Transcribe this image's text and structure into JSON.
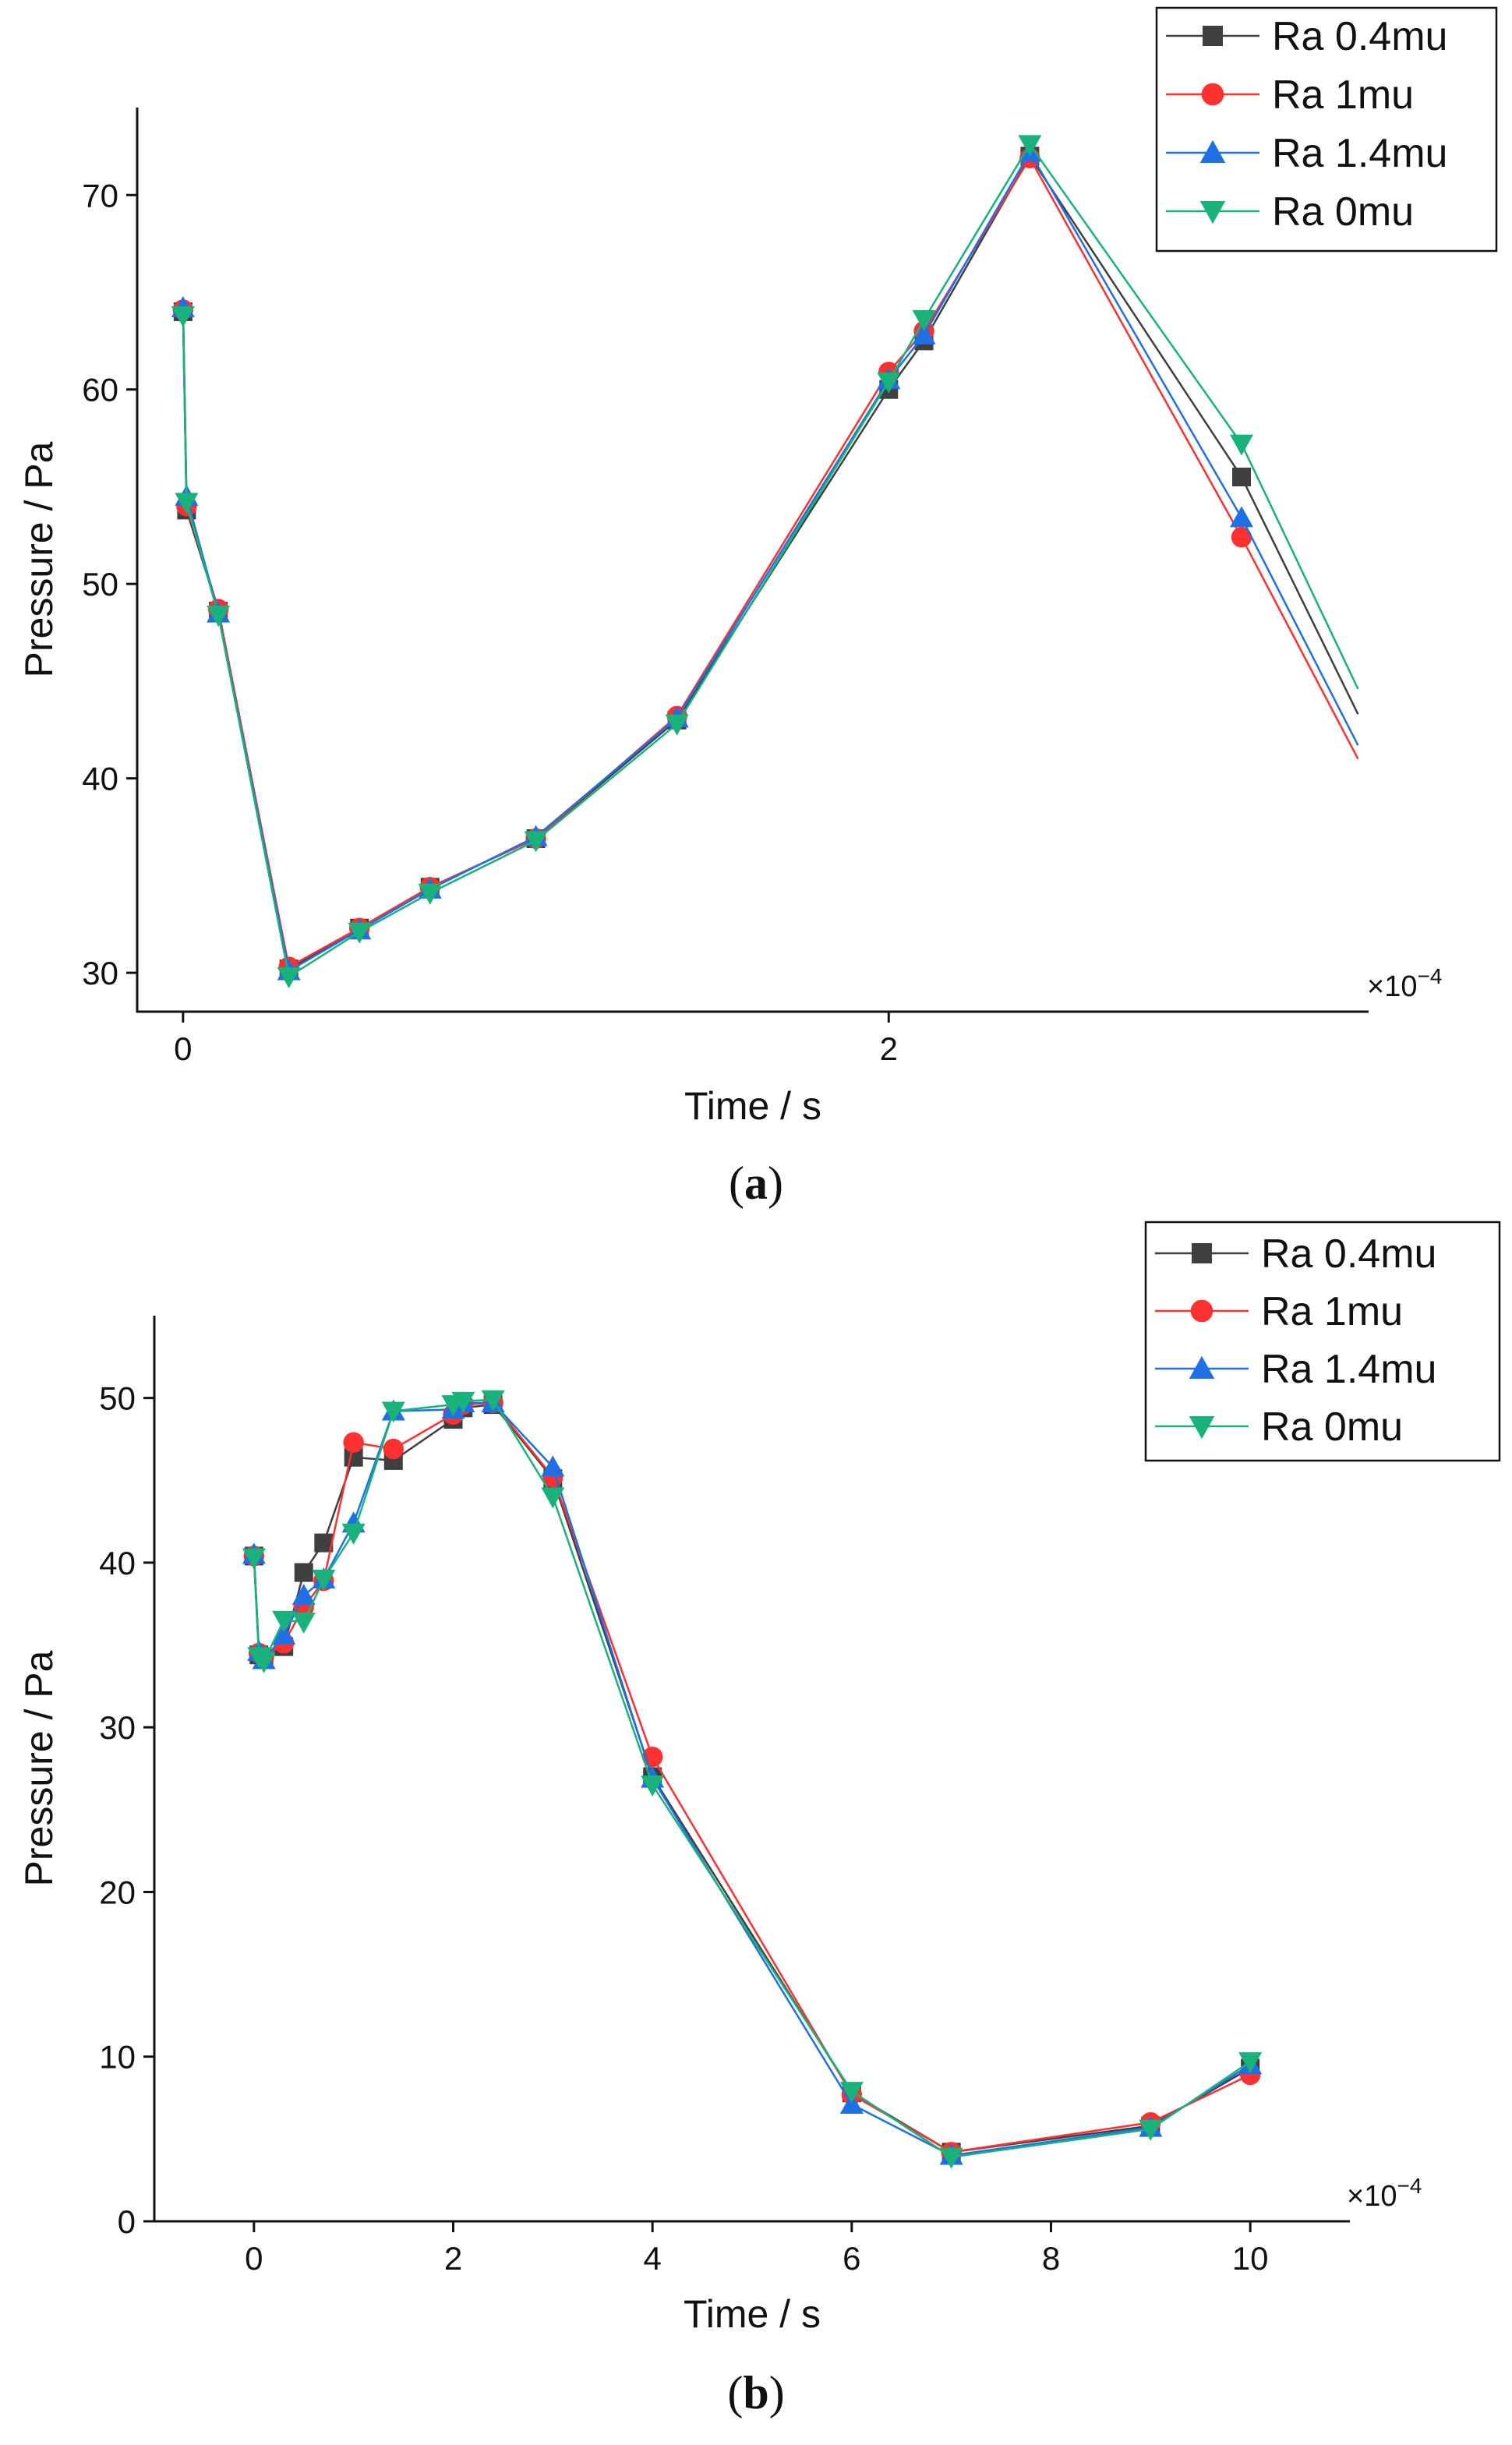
{
  "chart_data": [
    {
      "panel": "a",
      "type": "line",
      "caption_letter": "a",
      "xlabel": "Time / s",
      "ylabel": "Pressure / Pa",
      "x_multiplier": "×10",
      "x_multiplier_exp": "−4",
      "xlim": [
        -0.13,
        3.36
      ],
      "ylim": [
        28,
        74.5
      ],
      "xticks": [
        {
          "v": 0,
          "label": "0"
        },
        {
          "v": 2,
          "label": "2"
        }
      ],
      "yticks": [
        {
          "v": 30,
          "label": "30"
        },
        {
          "v": 40,
          "label": "40"
        },
        {
          "v": 50,
          "label": "50"
        },
        {
          "v": 60,
          "label": "60"
        },
        {
          "v": 70,
          "label": "70"
        }
      ],
      "series": [
        {
          "name": "Ra 0.4mu",
          "color": "#3f3f3f",
          "marker": "square",
          "x": [
            0,
            0.01,
            0.1,
            0.3,
            0.5,
            0.7,
            1.0,
            1.4,
            2.0,
            2.1,
            2.4,
            3.0,
            3.33
          ],
          "y": [
            64.0,
            53.8,
            48.6,
            30.2,
            32.3,
            34.4,
            36.9,
            43.0,
            60.0,
            62.5,
            72.0,
            55.5,
            43.3
          ],
          "markers": [
            true,
            true,
            true,
            true,
            true,
            true,
            true,
            true,
            true,
            true,
            true,
            true,
            false
          ]
        },
        {
          "name": "Ra 1mu",
          "color": "#ff3030",
          "marker": "circle",
          "x": [
            0,
            0.01,
            0.1,
            0.3,
            0.5,
            0.7,
            1.0,
            1.4,
            2.0,
            2.1,
            2.4,
            3.0,
            3.33
          ],
          "y": [
            64.1,
            54.0,
            48.7,
            30.3,
            32.3,
            34.4,
            36.9,
            43.2,
            60.9,
            63.0,
            71.9,
            52.4,
            41.0
          ],
          "markers": [
            true,
            true,
            true,
            true,
            true,
            true,
            true,
            true,
            true,
            true,
            true,
            true,
            false
          ]
        },
        {
          "name": "Ra 1.4mu",
          "color": "#1f6fe5",
          "marker": "triangle-up",
          "x": [
            0,
            0.01,
            0.1,
            0.3,
            0.5,
            0.7,
            1.0,
            1.4,
            2.0,
            2.1,
            2.4,
            3.0,
            3.33
          ],
          "y": [
            64.2,
            54.5,
            48.5,
            30.1,
            32.2,
            34.3,
            37.0,
            43.1,
            60.5,
            62.8,
            72.2,
            53.4,
            41.7
          ],
          "markers": [
            true,
            true,
            true,
            true,
            true,
            true,
            true,
            true,
            true,
            true,
            true,
            true,
            false
          ]
        },
        {
          "name": "Ra 0mu",
          "color": "#19b27a",
          "marker": "triangle-down",
          "x": [
            0,
            0.01,
            0.1,
            0.3,
            0.5,
            0.7,
            1.0,
            1.4,
            2.0,
            2.1,
            2.4,
            3.0,
            3.33
          ],
          "y": [
            63.8,
            54.2,
            48.4,
            29.8,
            32.1,
            34.1,
            36.8,
            42.8,
            60.4,
            63.6,
            72.6,
            57.2,
            44.6
          ],
          "markers": [
            true,
            true,
            true,
            true,
            true,
            true,
            true,
            true,
            true,
            true,
            true,
            true,
            false
          ]
        }
      ]
    },
    {
      "panel": "b",
      "type": "line",
      "caption_letter": "b",
      "xlabel": "Time / s",
      "ylabel": "Pressure / Pa",
      "x_multiplier": "×10",
      "x_multiplier_exp": "−4",
      "xlim": [
        -1.0,
        11.0
      ],
      "ylim": [
        0,
        55
      ],
      "xticks": [
        {
          "v": 0,
          "label": "0"
        },
        {
          "v": 2,
          "label": "2"
        },
        {
          "v": 4,
          "label": "4"
        },
        {
          "v": 6,
          "label": "6"
        },
        {
          "v": 8,
          "label": "8"
        },
        {
          "v": 10,
          "label": "10"
        }
      ],
      "yticks": [
        {
          "v": 0,
          "label": "0"
        },
        {
          "v": 10,
          "label": "10"
        },
        {
          "v": 20,
          "label": "20"
        },
        {
          "v": 30,
          "label": "30"
        },
        {
          "v": 40,
          "label": "40"
        },
        {
          "v": 50,
          "label": "50"
        }
      ],
      "series": [
        {
          "name": "Ra 0.4mu",
          "color": "#3f3f3f",
          "marker": "square",
          "x": [
            0,
            0.05,
            0.1,
            0.3,
            0.5,
            0.7,
            1.0,
            1.4,
            2.0,
            2.1,
            2.4,
            3.0,
            4.0,
            6.0,
            7.0,
            9.0,
            10.0
          ],
          "y": [
            40.4,
            34.4,
            34.2,
            34.9,
            39.4,
            41.2,
            46.4,
            46.2,
            48.7,
            49.4,
            49.6,
            45.1,
            27.0,
            7.8,
            4.2,
            5.8,
            9.3
          ],
          "markers": [
            true,
            true,
            true,
            true,
            true,
            true,
            true,
            true,
            true,
            true,
            true,
            true,
            true,
            true,
            true,
            true,
            true
          ]
        },
        {
          "name": "Ra 1mu",
          "color": "#ff3030",
          "marker": "circle",
          "x": [
            0,
            0.05,
            0.1,
            0.3,
            0.5,
            0.7,
            1.0,
            1.4,
            2.0,
            2.1,
            2.4,
            3.0,
            4.0,
            6.0,
            7.0,
            9.0,
            10.0
          ],
          "y": [
            40.4,
            34.5,
            34.3,
            35.1,
            37.3,
            38.9,
            47.3,
            46.9,
            49.0,
            49.6,
            49.7,
            45.2,
            28.2,
            7.7,
            4.2,
            6.0,
            8.9
          ],
          "markers": [
            true,
            true,
            true,
            true,
            true,
            true,
            true,
            true,
            true,
            true,
            true,
            true,
            true,
            true,
            true,
            true,
            true
          ]
        },
        {
          "name": "Ra 1.4mu",
          "color": "#1f6fe5",
          "marker": "triangle-up",
          "x": [
            0,
            0.05,
            0.1,
            0.3,
            0.5,
            0.7,
            1.0,
            1.4,
            2.0,
            2.1,
            2.4,
            3.0,
            4.0,
            6.0,
            7.0,
            9.0,
            10.0
          ],
          "y": [
            40.5,
            34.6,
            34.1,
            35.6,
            38.0,
            39.0,
            42.4,
            49.2,
            49.3,
            49.7,
            49.7,
            45.8,
            26.9,
            7.1,
            4.0,
            5.7,
            9.5
          ],
          "markers": [
            true,
            true,
            true,
            true,
            true,
            true,
            true,
            true,
            true,
            true,
            true,
            true,
            true,
            true,
            true,
            true,
            true
          ]
        },
        {
          "name": "Ra 0mu",
          "color": "#19b27a",
          "marker": "triangle-down",
          "x": [
            0,
            0.05,
            0.1,
            0.3,
            0.5,
            0.7,
            1.0,
            1.4,
            2.0,
            2.1,
            2.4,
            3.0,
            4.0,
            6.0,
            7.0,
            9.0,
            10.0
          ],
          "y": [
            40.3,
            34.3,
            34.0,
            36.5,
            36.4,
            39.0,
            41.8,
            49.2,
            49.6,
            49.8,
            49.9,
            44.0,
            26.5,
            7.9,
            3.9,
            5.6,
            9.7
          ],
          "markers": [
            true,
            true,
            true,
            true,
            true,
            true,
            true,
            true,
            true,
            true,
            true,
            true,
            true,
            true,
            true,
            true,
            true
          ]
        }
      ]
    }
  ]
}
